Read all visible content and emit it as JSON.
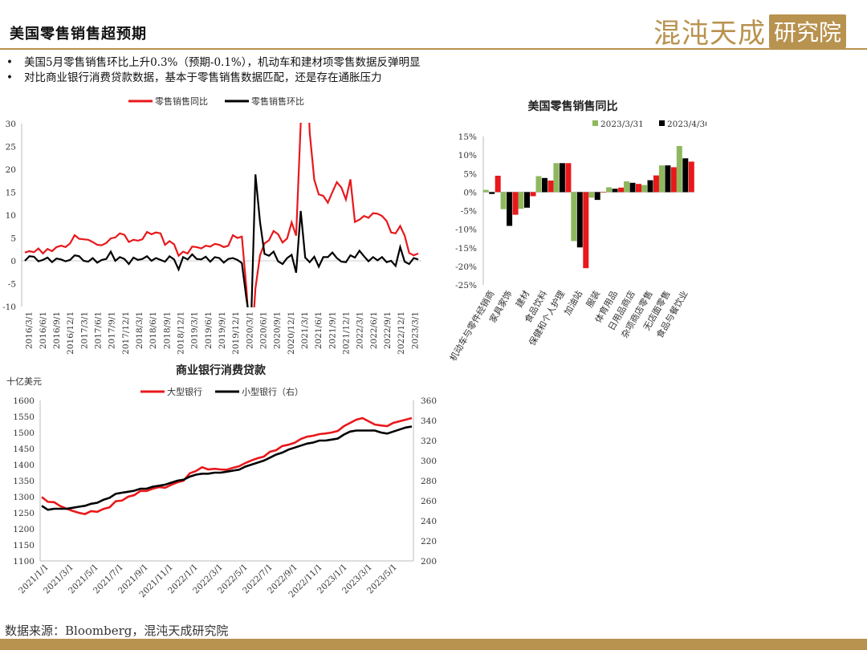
{
  "page": {
    "title": "美国零售销售超预期",
    "logo_script": "混沌天成",
    "logo_box": "研究院",
    "bullets": [
      "美国5月零售销售环比上升0.3%（预期-0.1%），机动车和建材项零售数据反弹明显",
      "对比商业银行消费贷款数据，基本于零售销售数据匹配，还是存在通胀压力"
    ],
    "source": "数据来源：Bloomberg，混沌天成研究院",
    "colors": {
      "accent": "#b8924f",
      "red": "#e8181b",
      "black": "#000000",
      "green": "#8fb85e"
    }
  },
  "chart_data": [
    {
      "type": "line",
      "title": "",
      "ylim": [
        -10,
        30
      ],
      "yticks": [
        -10,
        -5,
        0,
        5,
        10,
        15,
        20,
        25,
        30
      ],
      "grid": false,
      "legend": "top",
      "x_labels": [
        "2016/3/1",
        "2016/6/1",
        "2016/9/1",
        "2016/12/1",
        "2017/3/1",
        "2017/6/1",
        "2017/9/1",
        "2017/12/1",
        "2018/3/1",
        "2018/6/1",
        "2018/9/1",
        "2018/12/1",
        "2019/3/1",
        "2019/6/1",
        "2019/9/1",
        "2019/12/1",
        "2020/3/1",
        "2020/6/1",
        "2020/9/1",
        "2020/12/1",
        "2021/3/1",
        "2021/6/1",
        "2021/9/1",
        "2021/12/1",
        "2022/3/1",
        "2022/6/1",
        "2022/9/1",
        "2022/12/1",
        "2023/3/1"
      ],
      "series": [
        {
          "name": "零售销售同比",
          "color": "#e8181b",
          "values": [
            1.8,
            2.1,
            1.9,
            2.7,
            1.6,
            2.6,
            2.1,
            3.0,
            3.3,
            3.0,
            3.8,
            5.6,
            4.8,
            4.7,
            4.6,
            4.1,
            3.5,
            3.4,
            3.9,
            4.9,
            5.1,
            6.0,
            5.7,
            4.1,
            4.6,
            4.4,
            4.7,
            6.3,
            5.8,
            6.2,
            6.0,
            3.5,
            4.3,
            3.6,
            1.1,
            2.0,
            1.6,
            3.1,
            3.0,
            2.7,
            3.3,
            3.1,
            3.7,
            3.5,
            3.0,
            3.3,
            5.6,
            5.0,
            5.3,
            -6.1,
            -21.3,
            -6.0,
            1.2,
            3.8,
            4.5,
            6.5,
            5.8,
            4.0,
            4.9,
            8.4,
            5.5,
            30.0,
            52.0,
            28.0,
            17.7,
            14.5,
            14.2,
            12.7,
            15.0,
            17.2,
            16.0,
            13.4,
            17.8,
            8.5,
            9.0,
            9.8,
            9.4,
            10.4,
            10.3,
            9.8,
            8.7,
            6.2,
            6.0,
            7.6,
            5.5,
            1.7,
            1.2,
            1.6
          ]
        },
        {
          "name": "零售销售环比",
          "color": "#000000",
          "values": [
            0.0,
            1.0,
            0.9,
            -0.1,
            0.2,
            0.7,
            -0.3,
            0.5,
            0.3,
            -0.1,
            0.2,
            1.2,
            1.0,
            0.0,
            -0.2,
            0.6,
            -0.4,
            0.2,
            0.4,
            2.0,
            0.0,
            0.8,
            0.4,
            -0.7,
            0.7,
            0.2,
            0.4,
            1.0,
            0.0,
            0.6,
            0.2,
            -0.2,
            1.0,
            0.3,
            -1.9,
            0.8,
            0.3,
            1.4,
            0.4,
            0.3,
            0.9,
            -0.2,
            0.8,
            0.6,
            -0.4,
            0.4,
            0.6,
            0.2,
            -0.5,
            -8.3,
            -14.7,
            18.9,
            8.5,
            1.5,
            1.1,
            2.0,
            -0.1,
            -0.7,
            0.6,
            1.3,
            -2.6,
            10.9,
            0.7,
            -0.3,
            0.9,
            -1.3,
            0.8,
            0.8,
            1.8,
            0.6,
            -0.2,
            -0.3,
            1.2,
            0.7,
            2.2,
            1.0,
            -0.1,
            0.8,
            0.1,
            0.8,
            -0.3,
            0.0,
            -1.1,
            3.0,
            -0.2,
            -0.7,
            0.6,
            0.3
          ]
        }
      ]
    },
    {
      "type": "bar",
      "title": "美国零售销售同比",
      "ylim": [
        -25,
        15
      ],
      "yticks": [
        "15%",
        "10%",
        "5%",
        "0%",
        "-5%",
        "-10%",
        "-15%",
        "-20%",
        "-25%"
      ],
      "grid": false,
      "legend": "top",
      "categories": [
        "机动车与零件经销商",
        "家具家饰",
        "建材",
        "食品饮料",
        "保健和个人护理",
        "加油站",
        "服装",
        "体育用品",
        "日用品商店",
        "杂项商店零售",
        "无店面零售",
        "食品与餐饮业"
      ],
      "series": [
        {
          "name": "2023/3/31",
          "color": "#8fb85e",
          "values": [
            0.6,
            -4.6,
            -4.5,
            4.3,
            7.8,
            -13.2,
            -1.5,
            1.3,
            2.9,
            1.9,
            7.2,
            12.4
          ]
        },
        {
          "name": "2023/4/30",
          "color": "#000000",
          "values": [
            -0.5,
            -9.1,
            -4.2,
            3.8,
            7.8,
            -14.9,
            -2.1,
            0.9,
            2.5,
            3.2,
            7.2,
            9.1
          ]
        },
        {
          "name": "",
          "color": "#e8181b",
          "values": [
            4.4,
            -6.1,
            -1.1,
            3.1,
            7.8,
            -20.5,
            0.0,
            1.2,
            2.2,
            4.5,
            6.7,
            8.2
          ]
        }
      ]
    },
    {
      "type": "line",
      "title": "商业银行消费贷款",
      "ylabel": "十亿美元",
      "ylim": [
        1100,
        1600
      ],
      "yticks": [
        1100,
        1150,
        1200,
        1250,
        1300,
        1350,
        1400,
        1450,
        1500,
        1550,
        1600
      ],
      "y2lim": [
        200,
        360
      ],
      "y2ticks": [
        200,
        220,
        240,
        260,
        280,
        300,
        320,
        340,
        360
      ],
      "grid": false,
      "legend": "top",
      "x_labels": [
        "2021/1/1",
        "2021/3/1",
        "2021/5/1",
        "2021/7/1",
        "2021/9/1",
        "2021/11/1",
        "2022/1/1",
        "2022/3/1",
        "2022/5/1",
        "2022/7/1",
        "2022/9/1",
        "2022/11/1",
        "2023/1/1",
        "2023/3/1",
        "2023/5/1"
      ],
      "series": [
        {
          "name": "大型银行",
          "axis": "left",
          "color": "#e8181b",
          "values": [
            1299,
            1284,
            1283,
            1271,
            1263,
            1256,
            1250,
            1246,
            1255,
            1253,
            1262,
            1267,
            1286,
            1288,
            1300,
            1305,
            1318,
            1318,
            1325,
            1330,
            1328,
            1337,
            1345,
            1350,
            1373,
            1380,
            1392,
            1385,
            1387,
            1385,
            1384,
            1390,
            1395,
            1405,
            1413,
            1420,
            1425,
            1440,
            1445,
            1458,
            1462,
            1468,
            1480,
            1487,
            1490,
            1495,
            1497,
            1500,
            1505,
            1520,
            1530,
            1540,
            1545,
            1535,
            1525,
            1522,
            1520,
            1530,
            1535,
            1540,
            1545
          ]
        },
        {
          "name": "小型银行（右）",
          "axis": "right",
          "color": "#000000",
          "values": [
            255,
            251,
            252,
            252,
            252,
            253,
            254,
            255,
            257,
            258,
            261,
            263,
            267,
            268,
            269,
            270,
            272,
            272,
            274,
            275,
            276,
            278,
            280,
            281,
            284,
            286,
            287,
            287,
            288,
            288,
            289,
            290,
            291,
            294,
            296,
            298,
            300,
            303,
            306,
            308,
            311,
            313,
            315,
            317,
            318,
            320,
            320,
            321,
            322,
            326,
            329,
            330,
            330,
            330,
            330,
            328,
            327,
            329,
            331,
            333,
            334
          ]
        }
      ]
    }
  ]
}
